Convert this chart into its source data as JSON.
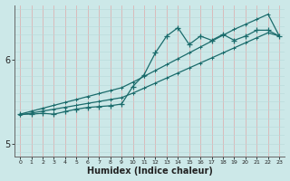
{
  "xlabel": "Humidex (Indice chaleur)",
  "ylabel": "",
  "bg_color": "#cce8e8",
  "line_color": "#1a6b6b",
  "grid_color_v": "#e0a8a8",
  "grid_color_h": "#b8d8d8",
  "x_data": [
    0,
    1,
    2,
    3,
    4,
    5,
    6,
    7,
    8,
    9,
    10,
    11,
    12,
    13,
    14,
    15,
    16,
    17,
    18,
    19,
    20,
    21,
    22,
    23
  ],
  "y_main": [
    5.35,
    5.35,
    5.36,
    5.35,
    5.38,
    5.41,
    5.43,
    5.44,
    5.45,
    5.47,
    5.68,
    5.82,
    6.08,
    6.28,
    6.38,
    6.18,
    6.28,
    6.23,
    6.3,
    6.23,
    6.28,
    6.35,
    6.35,
    6.28
  ],
  "y_trend_upper": [
    5.35,
    5.385,
    5.42,
    5.455,
    5.49,
    5.525,
    5.56,
    5.595,
    5.63,
    5.665,
    5.73,
    5.8,
    5.87,
    5.94,
    6.01,
    6.08,
    6.15,
    6.22,
    6.29,
    6.36,
    6.42,
    6.48,
    6.54,
    6.28
  ],
  "y_trend_lower": [
    5.34,
    5.363,
    5.386,
    5.409,
    5.432,
    5.455,
    5.478,
    5.501,
    5.524,
    5.547,
    5.6,
    5.66,
    5.72,
    5.78,
    5.84,
    5.9,
    5.96,
    6.02,
    6.08,
    6.14,
    6.2,
    6.26,
    6.32,
    6.28
  ],
  "ylim": [
    4.85,
    6.65
  ],
  "xlim": [
    -0.5,
    23.5
  ],
  "yticks": [
    5,
    6
  ],
  "xticks": [
    0,
    1,
    2,
    3,
    4,
    5,
    6,
    7,
    8,
    9,
    10,
    11,
    12,
    13,
    14,
    15,
    16,
    17,
    18,
    19,
    20,
    21,
    22,
    23
  ],
  "marker": "+",
  "markersize": 4,
  "linewidth": 0.9,
  "figwidth": 3.2,
  "figheight": 2.0,
  "dpi": 100
}
